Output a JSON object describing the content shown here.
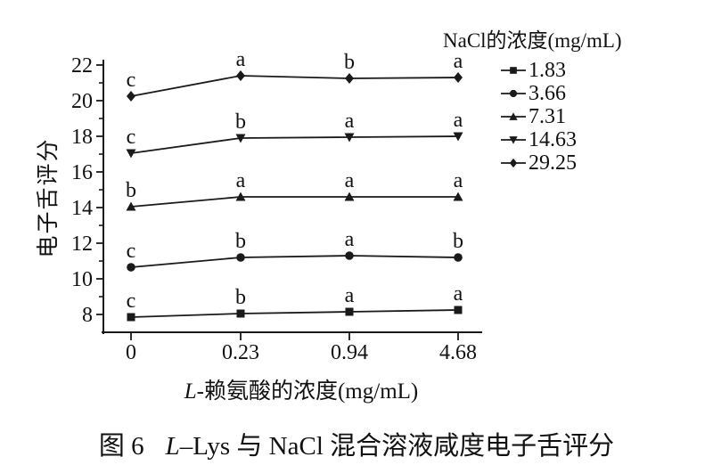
{
  "figure": {
    "caption": {
      "fig_label": "图 6",
      "italic_part": "L",
      "rest": "–Lys 与 NaCl 混合溶液咸度电子舌评分"
    }
  },
  "chart_data": {
    "type": "line",
    "categories": [
      "0",
      "0.23",
      "0.94",
      "4.68"
    ],
    "xlabel": {
      "italic": "L",
      "rest": "-赖氨酸的浓度(mg/mL)"
    },
    "ylabel": "电子舌评分",
    "y_ticks": [
      8,
      10,
      12,
      14,
      16,
      18,
      20,
      22
    ],
    "ylim": [
      6.9,
      22.6
    ],
    "grid": false,
    "legend": {
      "title": "NaCl的浓度(mg/mL)",
      "position": "top-right"
    },
    "series": [
      {
        "name": "1.83",
        "marker": "square",
        "values": [
          7.85,
          8.05,
          8.15,
          8.25
        ],
        "point_labels": [
          "c",
          "b",
          "a",
          "a"
        ]
      },
      {
        "name": "3.66",
        "marker": "circle",
        "values": [
          10.65,
          11.2,
          11.3,
          11.2
        ],
        "point_labels": [
          "c",
          "b",
          "a",
          "b"
        ]
      },
      {
        "name": "7.31",
        "marker": "triangle-up",
        "values": [
          14.05,
          14.6,
          14.6,
          14.6
        ],
        "point_labels": [
          "b",
          "a",
          "a",
          "a"
        ]
      },
      {
        "name": "14.63",
        "marker": "triangle-down",
        "values": [
          17.05,
          17.9,
          17.95,
          18.0
        ],
        "point_labels": [
          "c",
          "b",
          "a",
          "a"
        ]
      },
      {
        "name": "29.25",
        "marker": "diamond",
        "values": [
          20.25,
          21.4,
          21.25,
          21.3
        ],
        "point_labels": [
          "c",
          "a",
          "b",
          "a"
        ]
      }
    ],
    "colors": {
      "foreground": "#1a1a1a",
      "background": "#ffffff"
    }
  }
}
